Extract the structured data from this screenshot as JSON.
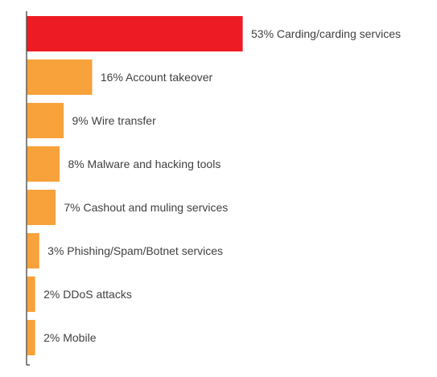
{
  "chart_data": {
    "type": "bar",
    "orientation": "horizontal",
    "title": "",
    "xlabel": "",
    "ylabel": "",
    "xlim": [
      0,
      53
    ],
    "grid": false,
    "legend": "none",
    "categories": [
      "Carding/carding services",
      "Account takeover",
      "Wire transfer",
      "Malware and hacking tools",
      "Cashout and muling services",
      "Phishing/Spam/Botnet services",
      "DDoS attacks",
      "Mobile"
    ],
    "values": [
      53,
      16,
      9,
      8,
      7,
      3,
      2,
      2
    ],
    "labels": [
      "53% Carding/carding services",
      "16% Account takeover",
      "9% Wire transfer",
      "8% Malware and hacking tools",
      "7% Cashout and muling services",
      "3% Phishing/Spam/Botnet services",
      "2% DDoS attacks",
      "2% Mobile"
    ],
    "colors": {
      "highlight": "#ed1c24",
      "default": "#f7a23b",
      "axis": "#333333",
      "label": "#404040"
    }
  }
}
